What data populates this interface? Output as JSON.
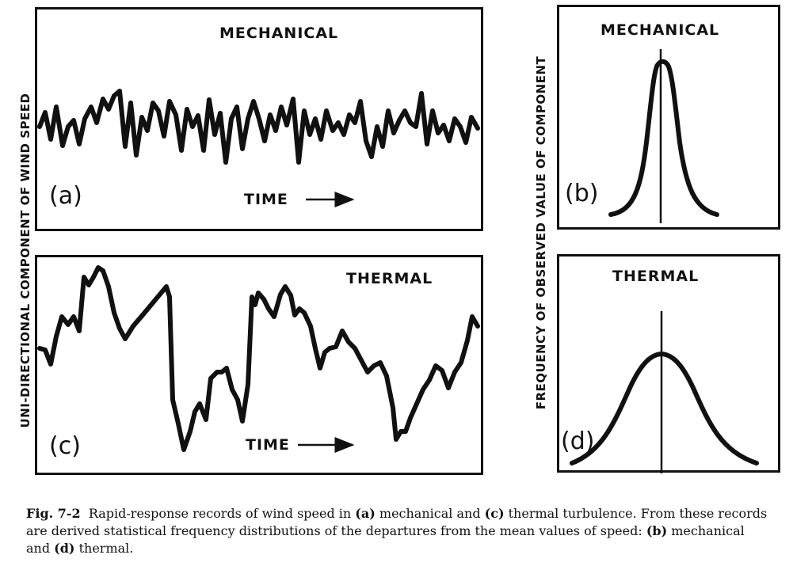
{
  "axes": {
    "left_ylabel": "UNI-DIRECTIONAL COMPONENT OF WIND SPEED",
    "right_ylabel": "FREQUENCY OF OBSERVED VALUE OF COMPONENT"
  },
  "panels": {
    "a": {
      "title": "MECHANICAL",
      "tag": "(a)",
      "xlabel": "TIME"
    },
    "b": {
      "title": "MECHANICAL",
      "tag": "(b)"
    },
    "c": {
      "title": "THERMAL",
      "tag": "(c)",
      "xlabel": "TIME"
    },
    "d": {
      "title": "THERMAL",
      "tag": "(d)"
    }
  },
  "caption": {
    "fig": "Fig. 7-2",
    "t1": "Rapid-response records of wind speed in ",
    "a": "(a)",
    "t2": " mechanical and ",
    "c": "(c)",
    "t3": " thermal turbulence. From these records are derived statistical frequency distributions of the departures from the mean values of speed: ",
    "b": "(b)",
    "t4": " mechanical and ",
    "d": "(d)",
    "t5": " thermal."
  }
}
